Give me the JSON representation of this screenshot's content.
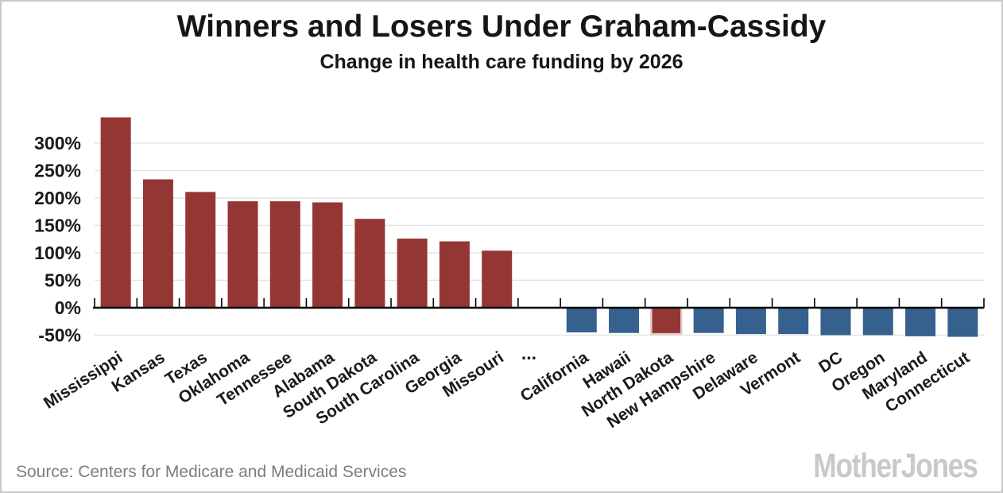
{
  "chart_data": {
    "type": "bar",
    "title": "Winners and Losers Under Graham-Cassidy",
    "subtitle": "Change in health care funding by 2026",
    "xlabel": "",
    "ylabel": "",
    "grid": true,
    "legend": null,
    "ylim": [
      -62,
      370
    ],
    "ytick_suffix": "%",
    "yticks": [
      {
        "value": 300,
        "label": "300%"
      },
      {
        "value": 250,
        "label": "250%"
      },
      {
        "value": 200,
        "label": "200%"
      },
      {
        "value": 150,
        "label": "150%"
      },
      {
        "value": 100,
        "label": "100%"
      },
      {
        "value": 50,
        "label": "50%"
      },
      {
        "value": 0,
        "label": "0%"
      },
      {
        "value": -50,
        "label": "-50%"
      }
    ],
    "gap_label": "...",
    "categories": [
      "Mississippi",
      "Kansas",
      "Texas",
      "Oklahoma",
      "Tennessee",
      "Alabama",
      "South Dakota",
      "South Carolina",
      "Georgia",
      "Missouri",
      "...",
      "California",
      "Hawaii",
      "North Dakota",
      "New Hampshire",
      "Delaware",
      "Vermont",
      "DC",
      "Oregon",
      "Maryland",
      "Connecticut"
    ],
    "values": [
      347,
      234,
      211,
      194,
      194,
      192,
      162,
      126,
      121,
      104,
      null,
      -45,
      -46,
      -48,
      -46,
      -48,
      -48,
      -50,
      -50,
      -52,
      -53
    ],
    "highlighted_category": "North Dakota",
    "colors": {
      "positive_bar": "#943634",
      "negative_bar": "#36618F",
      "highlight_fill": "#943634",
      "highlight_border": "#E3CCCC",
      "gridline": "#E4E4E4",
      "axis": "#000000",
      "text": "#1A1A1A"
    }
  },
  "footer": {
    "source": "Source: Centers for Medicare and Medicaid Services",
    "logo": "Mother Jones"
  }
}
